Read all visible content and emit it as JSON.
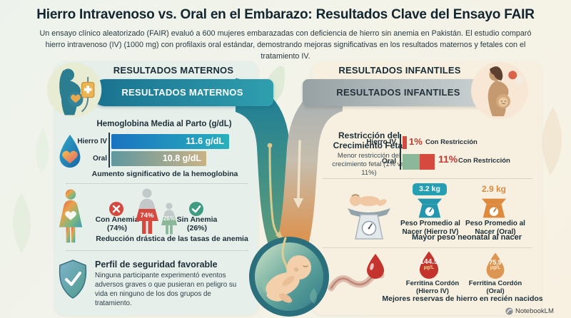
{
  "page": {
    "title": "Hierro Intravenoso vs. Oral en el Embarazo: Resultados Clave del Ensayo FAIR",
    "subtitle": "Un ensayo clínico aleatorizado (FAIR) evaluó a 600 mujeres embarazadas con deficiencia de hierro sin anemia en Pakistán. El estudio comparó hierro intravenoso (IV) (1000 mg) con profilaxis oral estándar, demostrando mejoras significativas en los resultados maternos y fetales con el tratamiento IV.",
    "attribution": "NotebookLM"
  },
  "maternal": {
    "heading": "RESULTADOS MATERNOS",
    "anemia": {
      "con_pct": "(74%)",
      "sin_pct": "(26%)"
    },
    "safety": {
      "title": "Perfil de seguridad favorable",
      "body": "Ninguna participante experimentó eventos adversos graves o que pusieran en peligro su vida en ninguno de los dos grupos de tratamiento."
    }
  },
  "infant": {
    "heading": "RESULTADOS INFANTILES",
    "growth": {
      "suffix": "Con Restricción"
    },
    "weight": {
      "iv_label": "Peso Promedio al Nacer (Hierro IV)",
      "oral_label": "Peso Promedio al Nacer (Oral)"
    },
    "ferritin": {
      "iv_label": "Ferritina Cordón (Hierro IV)",
      "oral_label": "Ferritina Cordón (Oral)"
    }
  },
  "chart_data": [
    {
      "id": "hemoglobina_parto",
      "type": "bar",
      "orientation": "horizontal",
      "title": "Hemoglobina Media al Parto (g/dL)",
      "categories": [
        "Hierro IV",
        "Oral"
      ],
      "values": [
        11.6,
        10.8
      ],
      "value_labels": [
        "11.6 g/dL",
        "10.8 g/dL"
      ],
      "unit": "g/dL",
      "xlim": [
        7.5,
        11.6
      ],
      "annotation": "Aumento significativo de la hemoglobina"
    },
    {
      "id": "tasas_anemia",
      "type": "pictogram",
      "categories": [
        "Con Anemia",
        "Sin Anemia"
      ],
      "values": [
        74,
        26
      ],
      "value_labels": [
        "74%",
        "26%"
      ],
      "unit": "%",
      "annotation": "Reducción drástica de las tasas de anemia"
    },
    {
      "id": "restriccion_crecimiento",
      "type": "bar",
      "orientation": "horizontal",
      "title": "Restricción del Crecimiento Fetal",
      "categories": [
        "Hierro IV",
        "Oral"
      ],
      "values": [
        1,
        11
      ],
      "value_labels": [
        "1%",
        "11%"
      ],
      "unit": "% Con Restricción",
      "annotation": "Menor restricción del crecimiento fetal (1% vs. 11%)"
    },
    {
      "id": "peso_nacer",
      "type": "pictogram",
      "categories": [
        "Hierro IV",
        "Oral"
      ],
      "values": [
        3.2,
        2.9
      ],
      "value_labels": [
        "3.2 kg",
        "2.9 kg"
      ],
      "unit": "kg",
      "annotation": "Mayor peso neonatal al nacer"
    },
    {
      "id": "ferritina_cordon",
      "type": "pictogram",
      "categories": [
        "Hierro IV",
        "Oral"
      ],
      "values": [
        144.5,
        75.9
      ],
      "value_labels": [
        "144.5",
        "75.9"
      ],
      "unit": "µg/L",
      "annotation": "Mejores reservas de hierro en recién nacidos"
    }
  ],
  "colors": {
    "banner_teal": "#19718f",
    "banner_gray": "#ccd3d4",
    "iv_accent": "#259fb2",
    "oral_accent": "#dd8a3f",
    "negative_red": "#d6493f",
    "positive_green": "#3f9b82",
    "bar_iv_gradient": [
      "#1a73c0",
      "#29b0bd"
    ],
    "bar_oral_gradient": [
      "#5f97a0",
      "#c9b286"
    ]
  }
}
